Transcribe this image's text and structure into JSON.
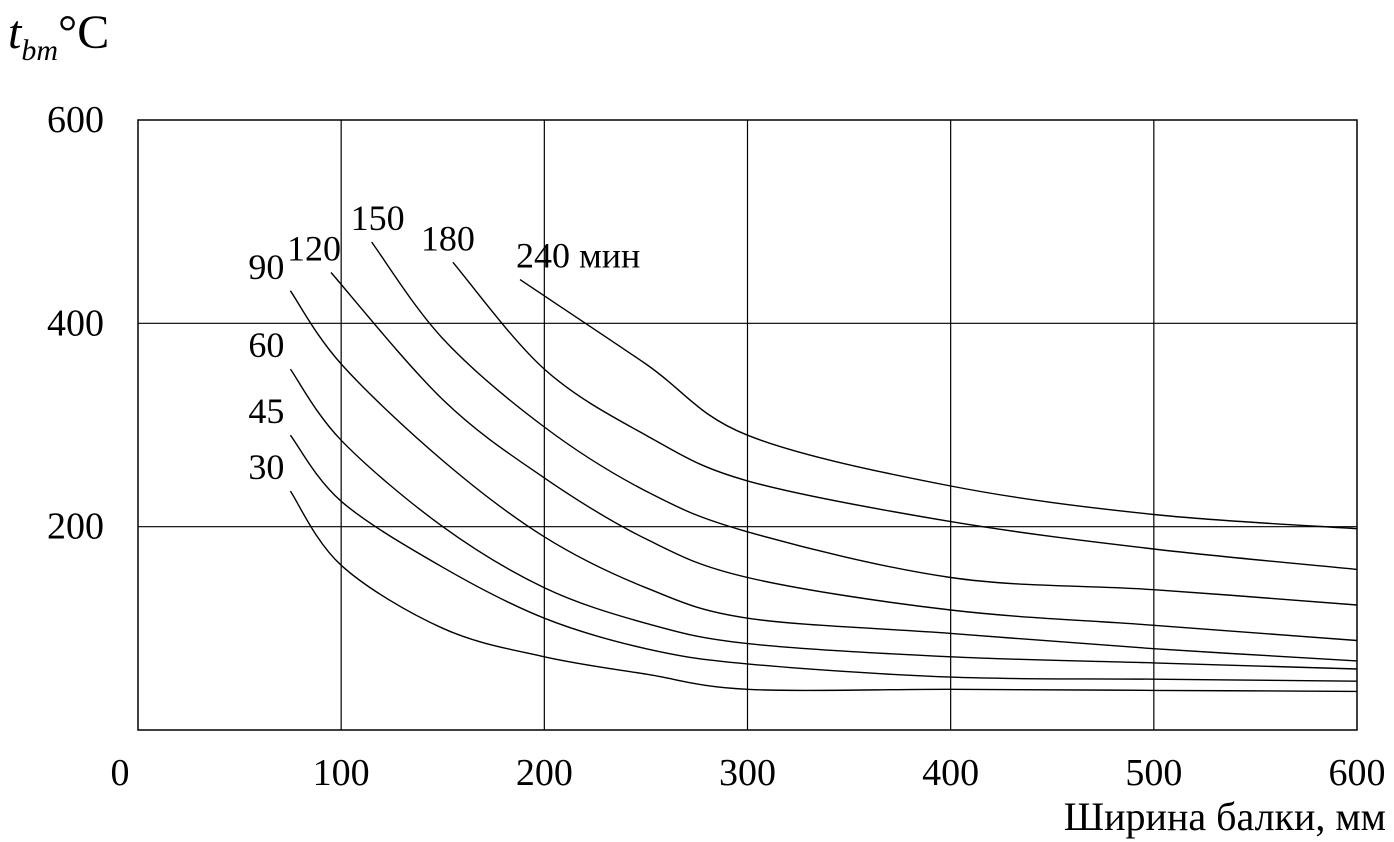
{
  "chart_data": {
    "type": "line",
    "title": "",
    "ylabel": {
      "main": "t",
      "sub": "bm",
      "unit": "°C"
    },
    "xlabel": "Ширина балки, мм",
    "xlim": [
      0,
      600
    ],
    "ylim": [
      0,
      600
    ],
    "x_ticks": [
      "0",
      "100",
      "200",
      "300",
      "400",
      "500",
      "600"
    ],
    "y_ticks": [
      "200",
      "400",
      "600"
    ],
    "grid": true,
    "series": [
      {
        "name": "30",
        "points": [
          [
            75,
            235
          ],
          [
            100,
            162
          ],
          [
            150,
            100
          ],
          [
            200,
            72
          ],
          [
            250,
            55
          ],
          [
            300,
            40
          ],
          [
            400,
            40
          ],
          [
            500,
            39
          ],
          [
            600,
            38
          ]
        ]
      },
      {
        "name": "45",
        "points": [
          [
            75,
            290
          ],
          [
            100,
            225
          ],
          [
            150,
            160
          ],
          [
            200,
            110
          ],
          [
            250,
            80
          ],
          [
            300,
            65
          ],
          [
            400,
            52
          ],
          [
            500,
            50
          ],
          [
            600,
            48
          ]
        ]
      },
      {
        "name": "60",
        "points": [
          [
            75,
            355
          ],
          [
            100,
            285
          ],
          [
            150,
            200
          ],
          [
            200,
            140
          ],
          [
            250,
            105
          ],
          [
            300,
            85
          ],
          [
            400,
            72
          ],
          [
            500,
            66
          ],
          [
            600,
            60
          ]
        ]
      },
      {
        "name": "90",
        "points": [
          [
            75,
            432
          ],
          [
            100,
            360
          ],
          [
            150,
            265
          ],
          [
            200,
            190
          ],
          [
            250,
            140
          ],
          [
            300,
            110
          ],
          [
            400,
            95
          ],
          [
            500,
            80
          ],
          [
            600,
            68
          ]
        ]
      },
      {
        "name": "120",
        "points": [
          [
            95,
            450
          ],
          [
            150,
            325
          ],
          [
            200,
            248
          ],
          [
            250,
            188
          ],
          [
            300,
            150
          ],
          [
            400,
            118
          ],
          [
            500,
            103
          ],
          [
            600,
            88
          ]
        ]
      },
      {
        "name": "150",
        "points": [
          [
            115,
            480
          ],
          [
            150,
            385
          ],
          [
            200,
            298
          ],
          [
            250,
            235
          ],
          [
            300,
            195
          ],
          [
            400,
            150
          ],
          [
            500,
            138
          ],
          [
            600,
            123
          ]
        ]
      },
      {
        "name": "180",
        "points": [
          [
            155,
            460
          ],
          [
            200,
            355
          ],
          [
            250,
            290
          ],
          [
            300,
            245
          ],
          [
            400,
            205
          ],
          [
            500,
            178
          ],
          [
            600,
            158
          ]
        ]
      },
      {
        "name": "240 мин",
        "points": [
          [
            188,
            443
          ],
          [
            250,
            360
          ],
          [
            300,
            290
          ],
          [
            400,
            240
          ],
          [
            500,
            212
          ],
          [
            600,
            198
          ]
        ]
      }
    ]
  }
}
